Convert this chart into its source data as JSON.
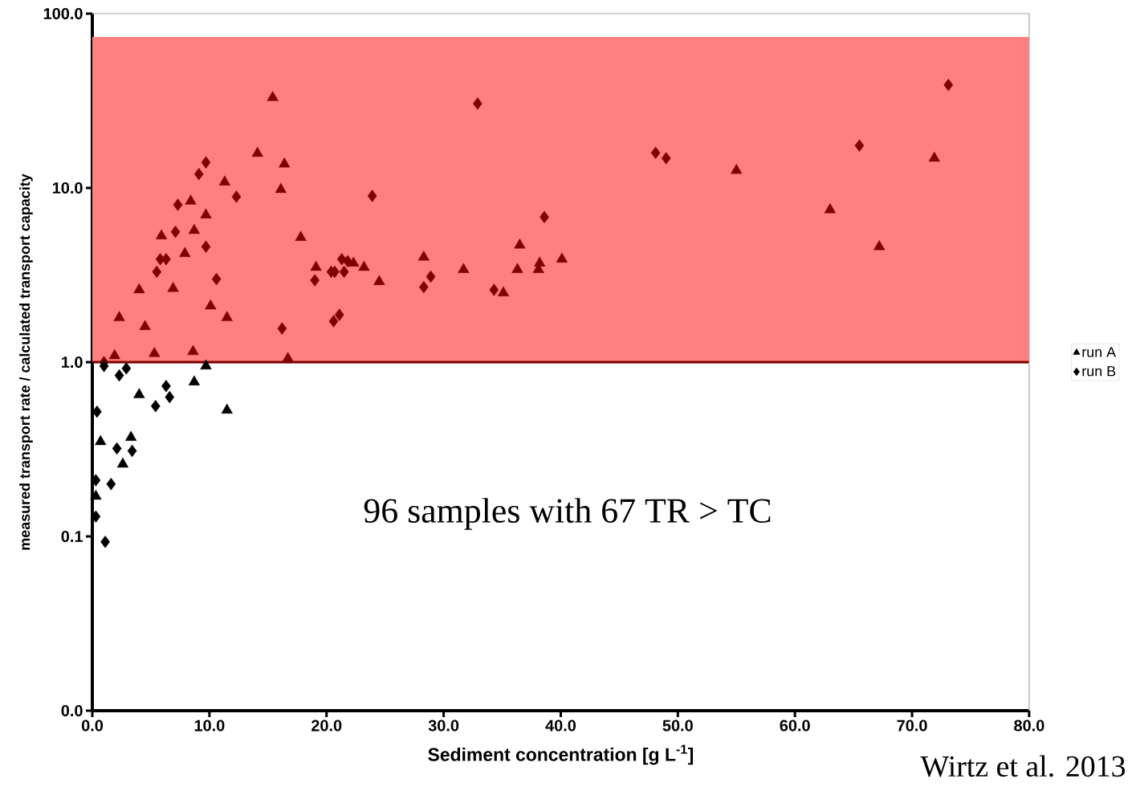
{
  "chart_data": {
    "type": "scatter",
    "xlabel": "Sediment concentration [g L$^{-1}$]",
    "ylabel": "measured transport rate / calculated transport capacity",
    "log": "y",
    "xlim": [
      0,
      80
    ],
    "ylim": [
      0.01,
      100
    ],
    "xticks": [
      {
        "value": 0,
        "label": "0.0"
      },
      {
        "value": 10,
        "label": "10.0"
      },
      {
        "value": 20,
        "label": "20.0"
      },
      {
        "value": 30,
        "label": "30.0"
      },
      {
        "value": 40,
        "label": "40.0"
      },
      {
        "value": 50,
        "label": "50.0"
      },
      {
        "value": 60,
        "label": "60.0"
      },
      {
        "value": 70,
        "label": "70.0"
      },
      {
        "value": 80,
        "label": "80.0"
      }
    ],
    "yticks": [
      {
        "value": 0.01,
        "label": "0.0"
      },
      0.1,
      {
        "value": 1,
        "label": "1.0"
      },
      {
        "value": 10,
        "label": "10.0"
      },
      {
        "value": 100,
        "label": "100.0"
      }
    ],
    "bands": [
      {
        "axis": "y",
        "from": 1,
        "to": 73.5,
        "color": "#ff8080"
      }
    ],
    "ref_lines": [
      {
        "axis": "y",
        "value": 1,
        "color": "#800000"
      }
    ],
    "legend": "right",
    "grid": false,
    "annotations": [
      "96 samples with 67 TR > TC",
      "Wirtz et al. 2013"
    ],
    "series": [
      {
        "name": "run A",
        "marker": "triangle",
        "color": "#000000",
        "x": [
          0.3,
          0.7,
          1.9,
          2.3,
          2.6,
          3.3,
          4.0,
          4.0,
          4.5,
          5.3,
          5.9,
          6.9,
          7.9,
          8.4,
          8.7,
          8.6,
          8.7,
          9.7,
          9.7,
          10.1,
          11.3,
          11.5,
          11.5,
          14.1,
          15.4,
          16.1,
          16.4,
          16.7,
          17.8,
          19.1,
          22.3,
          23.2,
          24.5,
          28.3,
          31.7,
          35.1,
          36.3,
          36.5,
          38.2,
          38.1,
          40.1,
          55.0,
          63.0,
          67.2,
          71.9
        ],
        "values": [
          0.17,
          0.35,
          1.09,
          1.8,
          0.26,
          0.37,
          2.6,
          0.65,
          1.6,
          1.12,
          5.3,
          2.65,
          4.2,
          8.4,
          5.7,
          1.15,
          0.77,
          7.0,
          0.95,
          2.1,
          10.8,
          1.8,
          0.53,
          15.8,
          33,
          9.8,
          13.7,
          1.05,
          5.2,
          3.5,
          3.7,
          3.5,
          2.9,
          4.0,
          3.4,
          2.5,
          3.4,
          4.7,
          3.7,
          3.4,
          3.9,
          12.6,
          7.5,
          4.6,
          14.8
        ],
        "colors": [
          "#000000",
          "#000000",
          "#800000",
          "#800000",
          "#000000",
          "#000000",
          "#800000",
          "#000000",
          "#800000",
          "#800000",
          "#800000",
          "#800000",
          "#800000",
          "#800000",
          "#800000",
          "#800000",
          "#000000",
          "#800000",
          "#000000",
          "#800000",
          "#800000",
          "#800000",
          "#000000",
          "#800000",
          "#800000",
          "#800000",
          "#800000",
          "#800000",
          "#800000",
          "#800000",
          "#800000",
          "#800000",
          "#800000",
          "#800000",
          "#800000",
          "#800000",
          "#800000",
          "#800000",
          "#800000",
          "#800000",
          "#800000",
          "#800000",
          "#800000",
          "#800000",
          "#800000"
        ]
      },
      {
        "name": "run B",
        "marker": "diamond",
        "color": "#000000",
        "x": [
          0.4,
          0.3,
          0.3,
          1.1,
          1.0,
          1.0,
          1.6,
          2.1,
          2.3,
          2.9,
          3.4,
          5.4,
          6.3,
          6.6,
          9.7,
          9.1,
          12.3,
          23.9,
          7.3,
          7.1,
          9.7,
          5.8,
          6.3,
          5.5,
          10.6,
          16.2,
          19.0,
          20.4,
          20.7,
          21.3,
          21.8,
          21.5,
          21.1,
          20.6,
          28.3,
          28.9,
          32.9,
          34.3,
          38.6,
          48.1,
          49.0,
          65.5,
          73.1
        ],
        "values": [
          0.52,
          0.21,
          0.13,
          0.093,
          1.0,
          0.95,
          0.2,
          0.32,
          0.84,
          0.92,
          0.31,
          0.56,
          0.73,
          0.63,
          14.0,
          12.0,
          8.9,
          9.0,
          8.0,
          5.6,
          4.6,
          3.9,
          3.9,
          3.3,
          3.0,
          1.56,
          2.95,
          3.3,
          3.3,
          3.9,
          3.8,
          3.3,
          1.87,
          1.72,
          2.7,
          3.1,
          30.5,
          2.6,
          6.8,
          15.9,
          14.8,
          17.5,
          39
        ],
        "colors": [
          "#000000",
          "#000000",
          "#000000",
          "#000000",
          "#800000",
          "#000000",
          "#000000",
          "#000000",
          "#000000",
          "#000000",
          "#000000",
          "#000000",
          "#000000",
          "#000000",
          "#800000",
          "#800000",
          "#800000",
          "#800000",
          "#800000",
          "#800000",
          "#800000",
          "#800000",
          "#800000",
          "#800000",
          "#800000",
          "#800000",
          "#800000",
          "#800000",
          "#800000",
          "#800000",
          "#800000",
          "#800000",
          "#800000",
          "#800000",
          "#800000",
          "#800000",
          "#800000",
          "#800000",
          "#800000",
          "#800000",
          "#800000",
          "#800000",
          "#800000"
        ]
      }
    ]
  }
}
